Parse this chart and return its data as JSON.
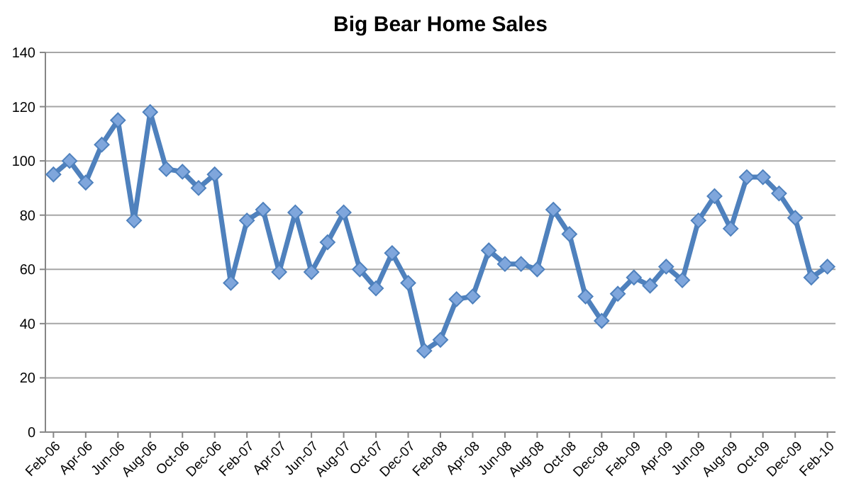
{
  "chart_data": {
    "type": "line",
    "title": "Big Bear Home Sales",
    "categories": [
      "Feb-06",
      null,
      "Apr-06",
      null,
      "Jun-06",
      null,
      "Aug-06",
      null,
      "Oct-06",
      null,
      "Dec-06",
      null,
      "Feb-07",
      null,
      "Apr-07",
      null,
      "Jun-07",
      null,
      "Aug-07",
      null,
      "Oct-07",
      null,
      "Dec-07",
      null,
      "Feb-08",
      null,
      "Apr-08",
      null,
      "Jun-08",
      null,
      "Aug-08",
      null,
      "Oct-08",
      null,
      "Dec-08",
      null,
      "Feb-09",
      null,
      "Apr-09",
      null,
      "Jun-09",
      null,
      "Aug-09",
      null,
      "Oct-09",
      null,
      "Dec-09",
      null,
      "Feb-10"
    ],
    "series": [
      {
        "color": "#4f81bd",
        "values": [
          95,
          100,
          92,
          106,
          115,
          78,
          118,
          97,
          96,
          90,
          95,
          55,
          78,
          82,
          59,
          81,
          59,
          70,
          81,
          60,
          53,
          66,
          55,
          30,
          34,
          49,
          50,
          67,
          62,
          62,
          60,
          82,
          73,
          50,
          41,
          51,
          57,
          54,
          61,
          56,
          78,
          87,
          75,
          94,
          94,
          88,
          79,
          57,
          61
        ]
      }
    ],
    "ylim": [
      0,
      140
    ],
    "yticks": [
      0,
      20,
      40,
      60,
      80,
      100,
      120,
      140
    ],
    "grid": "y",
    "marker": "diamond",
    "line_style": "solid"
  }
}
